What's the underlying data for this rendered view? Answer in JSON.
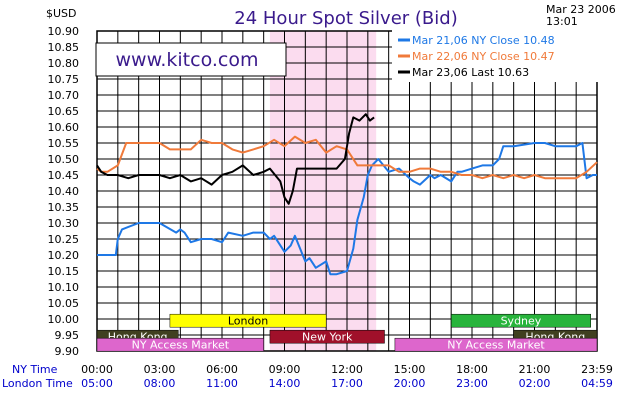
{
  "chart_data": {
    "type": "line",
    "title": "24 Hour Spot Silver (Bid)",
    "ylabel": "$USD",
    "date": "Mar 23 2006",
    "time": "13:01",
    "source": "www.kitco.com",
    "ylim": [
      9.9,
      10.9
    ],
    "yticks": [
      "10.90",
      "10.85",
      "10.80",
      "10.75",
      "10.70",
      "10.65",
      "10.60",
      "10.55",
      "10.50",
      "10.45",
      "10.40",
      "10.35",
      "10.30",
      "10.25",
      "10.20",
      "10.15",
      "10.10",
      "10.05",
      "10.00",
      "9.95",
      "9.90"
    ],
    "xlim": [
      0,
      24
    ],
    "ny_time_label": "NY Time",
    "london_time_label": "London Time",
    "ny_ticks": [
      "00:00",
      "03:00",
      "06:00",
      "09:00",
      "12:00",
      "15:00",
      "18:00",
      "21:00",
      "23:59"
    ],
    "london_ticks": [
      "05:00",
      "08:00",
      "11:00",
      "14:00",
      "17:00",
      "20:00",
      "23:00",
      "02:00",
      "04:59"
    ],
    "legend": [
      {
        "label": "Mar 21,06  NY  Close  10.48",
        "color": "#1e78e6"
      },
      {
        "label": "Mar 22,06  NY  Close  10.47",
        "color": "#f07a3a"
      },
      {
        "label": "Mar 23,06  Last  10.63",
        "color": "#000000"
      }
    ],
    "highlight_range_ny_hours": [
      8.3,
      13.4
    ],
    "sessions": [
      {
        "label": "London",
        "start": 3.5,
        "end": 11.0,
        "row": 1,
        "color": "#ffff00",
        "text_color": "#000000"
      },
      {
        "label": "Sydney",
        "start": 17.0,
        "end": 23.7,
        "row": 1,
        "color": "#28b43c",
        "text_color": "#ffffff"
      },
      {
        "label": "Hong  Kong",
        "start": 0.0,
        "end": 3.9,
        "row": 2,
        "color": "#404020",
        "text_color": "#ffffff"
      },
      {
        "label": "New  York",
        "start": 8.3,
        "end": 13.8,
        "row": 2,
        "color": "#a0102a",
        "text_color": "#ffffff"
      },
      {
        "label": "Hong  Kong",
        "start": 20.0,
        "end": 24.0,
        "row": 2,
        "color": "#404020",
        "text_color": "#ffffff"
      },
      {
        "label": "NY  Access  Market",
        "start": 0.0,
        "end": 8.0,
        "row": 3,
        "color": "#dd66cc",
        "text_color": "#ffffff"
      },
      {
        "label": "NY  Access  Market",
        "start": 14.3,
        "end": 24.0,
        "row": 3,
        "color": "#dd66cc",
        "text_color": "#ffffff"
      }
    ],
    "series": [
      {
        "name": "Mar 21,06",
        "color": "#1e78e6",
        "x": [
          0,
          0.9,
          1.0,
          1.2,
          2.0,
          2.4,
          3.0,
          3.8,
          4.0,
          4.2,
          4.5,
          5.0,
          5.5,
          6.0,
          6.3,
          7.0,
          7.5,
          8.0,
          8.3,
          8.5,
          9.0,
          9.3,
          9.5,
          10.0,
          10.2,
          10.5,
          11.0,
          11.2,
          11.5,
          12.0,
          12.3,
          12.5,
          12.8,
          13.0,
          13.2,
          13.5,
          14.0,
          14.5,
          15.0,
          15.2,
          15.5,
          16.0,
          16.2,
          16.5,
          17.0,
          17.3,
          17.5,
          18.0,
          18.5,
          19.0,
          19.3,
          19.5,
          20.0,
          21.0,
          21.5,
          22.0,
          22.5,
          23.0,
          23.3,
          23.5,
          23.8,
          24.0
        ],
        "y": [
          10.2,
          10.2,
          10.25,
          10.28,
          10.3,
          10.3,
          10.3,
          10.27,
          10.28,
          10.27,
          10.24,
          10.25,
          10.25,
          10.24,
          10.27,
          10.26,
          10.27,
          10.27,
          10.25,
          10.26,
          10.21,
          10.23,
          10.26,
          10.18,
          10.19,
          10.16,
          10.18,
          10.14,
          10.14,
          10.15,
          10.22,
          10.31,
          10.38,
          10.45,
          10.48,
          10.5,
          10.46,
          10.47,
          10.44,
          10.43,
          10.42,
          10.45,
          10.44,
          10.45,
          10.43,
          10.46,
          10.46,
          10.47,
          10.48,
          10.48,
          10.5,
          10.54,
          10.54,
          10.55,
          10.55,
          10.54,
          10.54,
          10.54,
          10.55,
          10.44,
          10.45,
          10.45
        ]
      },
      {
        "name": "Mar 22,06",
        "color": "#f07a3a",
        "x": [
          0,
          0.2,
          0.5,
          1.0,
          1.4,
          2.0,
          2.4,
          3.0,
          3.5,
          4.0,
          4.5,
          5.0,
          5.5,
          6.0,
          6.5,
          7.0,
          7.5,
          8.0,
          8.5,
          9.0,
          9.5,
          10.0,
          10.5,
          11.0,
          11.5,
          12.0,
          12.5,
          13.0,
          13.5,
          14.0,
          14.5,
          15.0,
          15.5,
          16.0,
          16.5,
          17.0,
          17.5,
          18.0,
          18.5,
          19.0,
          19.5,
          20.0,
          20.5,
          21.0,
          21.5,
          22.0,
          22.5,
          23.0,
          23.5,
          24.0
        ],
        "y": [
          10.47,
          10.46,
          10.46,
          10.48,
          10.55,
          10.55,
          10.55,
          10.55,
          10.53,
          10.53,
          10.53,
          10.56,
          10.55,
          10.55,
          10.53,
          10.52,
          10.53,
          10.54,
          10.56,
          10.54,
          10.57,
          10.55,
          10.56,
          10.52,
          10.54,
          10.53,
          10.48,
          10.48,
          10.48,
          10.48,
          10.46,
          10.46,
          10.47,
          10.47,
          10.46,
          10.46,
          10.45,
          10.45,
          10.44,
          10.45,
          10.44,
          10.45,
          10.44,
          10.45,
          10.44,
          10.44,
          10.44,
          10.44,
          10.46,
          10.49
        ]
      },
      {
        "name": "Mar 23,06",
        "color": "#000000",
        "x": [
          0,
          0.2,
          0.5,
          1.0,
          1.5,
          2.0,
          2.5,
          3.0,
          3.5,
          4.0,
          4.5,
          5.0,
          5.5,
          6.0,
          6.5,
          7.0,
          7.5,
          8.0,
          8.3,
          8.8,
          9.0,
          9.2,
          9.4,
          9.6,
          10.0,
          10.5,
          11.0,
          11.5,
          11.9,
          12.1,
          12.3,
          12.6,
          12.9,
          13.1,
          13.3
        ],
        "y": [
          10.48,
          10.46,
          10.45,
          10.45,
          10.44,
          10.45,
          10.45,
          10.45,
          10.44,
          10.45,
          10.43,
          10.44,
          10.42,
          10.45,
          10.46,
          10.48,
          10.45,
          10.46,
          10.47,
          10.43,
          10.38,
          10.36,
          10.4,
          10.47,
          10.47,
          10.47,
          10.47,
          10.47,
          10.5,
          10.58,
          10.63,
          10.62,
          10.64,
          10.62,
          10.63
        ]
      }
    ]
  }
}
